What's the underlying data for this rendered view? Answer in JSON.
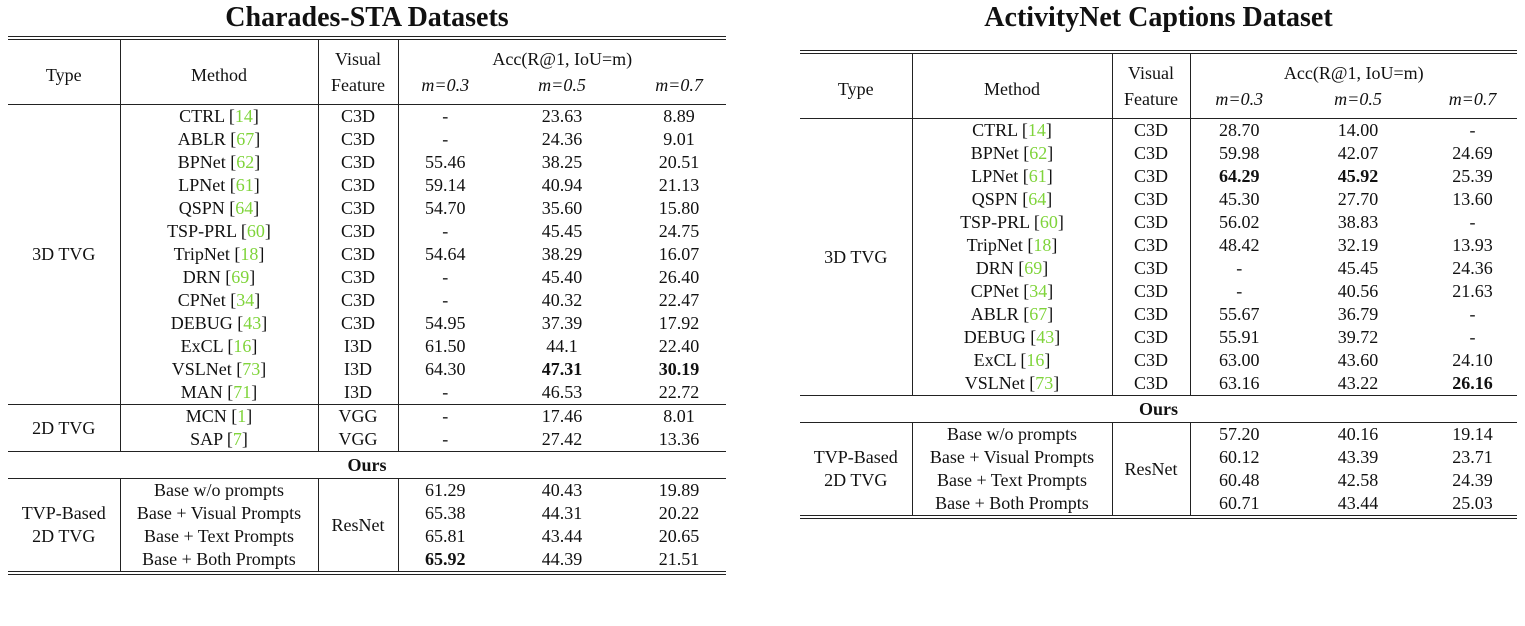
{
  "left": {
    "title": "Charades-STA Datasets",
    "headers": {
      "type": "Type",
      "method": "Method",
      "feature_l1": "Visual",
      "feature_l2": "Feature",
      "acc": "Acc(R@1, IoU=m)",
      "m1": "m=0.3",
      "m2": "m=0.5",
      "m3": "m=0.7"
    },
    "group_3d": "3D TVG",
    "rows_3d": [
      {
        "method": "CTRL",
        "ref": "14",
        "feat": "C3D",
        "v1": "-",
        "v2": "23.63",
        "v3": "8.89"
      },
      {
        "method": "ABLR",
        "ref": "67",
        "feat": "C3D",
        "v1": "-",
        "v2": "24.36",
        "v3": "9.01"
      },
      {
        "method": "BPNet",
        "ref": "62",
        "feat": "C3D",
        "v1": "55.46",
        "v2": "38.25",
        "v3": "20.51"
      },
      {
        "method": "LPNet",
        "ref": "61",
        "feat": "C3D",
        "v1": "59.14",
        "v2": "40.94",
        "v3": "21.13"
      },
      {
        "method": "QSPN",
        "ref": "64",
        "feat": "C3D",
        "v1": "54.70",
        "v2": "35.60",
        "v3": "15.80"
      },
      {
        "method": "TSP-PRL",
        "ref": "60",
        "feat": "C3D",
        "v1": "-",
        "v2": "45.45",
        "v3": "24.75"
      },
      {
        "method": "TripNet",
        "ref": "18",
        "feat": "C3D",
        "v1": "54.64",
        "v2": "38.29",
        "v3": "16.07"
      },
      {
        "method": "DRN",
        "ref": "69",
        "feat": "C3D",
        "v1": "-",
        "v2": "45.40",
        "v3": "26.40"
      },
      {
        "method": "CPNet",
        "ref": "34",
        "feat": "C3D",
        "v1": "-",
        "v2": "40.32",
        "v3": "22.47"
      },
      {
        "method": "DEBUG",
        "ref": "43",
        "feat": "C3D",
        "v1": "54.95",
        "v2": "37.39",
        "v3": "17.92"
      },
      {
        "method": "ExCL",
        "ref": "16",
        "feat": "I3D",
        "v1": "61.50",
        "v2": "44.1",
        "v3": "22.40"
      },
      {
        "method": "VSLNet",
        "ref": "73",
        "feat": "I3D",
        "v1": "64.30",
        "v2": "47.31",
        "v3": "30.19"
      },
      {
        "method": "MAN",
        "ref": "71",
        "feat": "I3D",
        "v1": "-",
        "v2": "46.53",
        "v3": "22.72"
      }
    ],
    "group_2d": "2D TVG",
    "rows_2d": [
      {
        "method": "MCN",
        "ref": "1",
        "feat": "VGG",
        "v1": "-",
        "v2": "17.46",
        "v3": "8.01"
      },
      {
        "method": "SAP",
        "ref": "7",
        "feat": "VGG",
        "v1": "-",
        "v2": "27.42",
        "v3": "13.36"
      }
    ],
    "ours_label": "Ours",
    "group_tvp_l1": "TVP-Based",
    "group_tvp_l2": "2D TVG",
    "tvp_feature": "ResNet",
    "rows_tvp": [
      {
        "method": "Base w/o prompts",
        "v1": "61.29",
        "v2": "40.43",
        "v3": "19.89"
      },
      {
        "method": "Base + Visual Prompts",
        "v1": "65.38",
        "v2": "44.31",
        "v3": "20.22"
      },
      {
        "method": "Base + Text Prompts",
        "v1": "65.81",
        "v2": "43.44",
        "v3": "20.65"
      },
      {
        "method": "Base + Both Prompts",
        "v1": "65.92",
        "v2": "44.39",
        "v3": "21.51"
      }
    ]
  },
  "right": {
    "title": "ActivityNet Captions Dataset",
    "headers": {
      "type": "Type",
      "method": "Method",
      "feature_l1": "Visual",
      "feature_l2": "Feature",
      "acc": "Acc(R@1, IoU=m)",
      "m1": "m=0.3",
      "m2": "m=0.5",
      "m3": "m=0.7"
    },
    "group_3d": "3D TVG",
    "rows_3d": [
      {
        "method": "CTRL",
        "ref": "14",
        "feat": "C3D",
        "v1": "28.70",
        "v2": "14.00",
        "v3": "-"
      },
      {
        "method": "BPNet",
        "ref": "62",
        "feat": "C3D",
        "v1": "59.98",
        "v2": "42.07",
        "v3": "24.69"
      },
      {
        "method": "LPNet",
        "ref": "61",
        "feat": "C3D",
        "v1": "64.29",
        "v2": "45.92",
        "v3": "25.39"
      },
      {
        "method": "QSPN",
        "ref": "64",
        "feat": "C3D",
        "v1": "45.30",
        "v2": "27.70",
        "v3": "13.60"
      },
      {
        "method": "TSP-PRL",
        "ref": "60",
        "feat": "C3D",
        "v1": "56.02",
        "v2": "38.83",
        "v3": "-"
      },
      {
        "method": "TripNet",
        "ref": "18",
        "feat": "C3D",
        "v1": "48.42",
        "v2": "32.19",
        "v3": "13.93"
      },
      {
        "method": "DRN",
        "ref": "69",
        "feat": "C3D",
        "v1": "-",
        "v2": "45.45",
        "v3": "24.36"
      },
      {
        "method": "CPNet",
        "ref": "34",
        "feat": "C3D",
        "v1": "-",
        "v2": "40.56",
        "v3": "21.63"
      },
      {
        "method": "ABLR",
        "ref": "67",
        "feat": "C3D",
        "v1": "55.67",
        "v2": "36.79",
        "v3": "-"
      },
      {
        "method": "DEBUG",
        "ref": "43",
        "feat": "C3D",
        "v1": "55.91",
        "v2": "39.72",
        "v3": "-"
      },
      {
        "method": "ExCL",
        "ref": "16",
        "feat": "C3D",
        "v1": "63.00",
        "v2": "43.60",
        "v3": "24.10"
      },
      {
        "method": "VSLNet",
        "ref": "73",
        "feat": "C3D",
        "v1": "63.16",
        "v2": "43.22",
        "v3": "26.16"
      }
    ],
    "ours_label": "Ours",
    "group_tvp_l1": "TVP-Based",
    "group_tvp_l2": "2D TVG",
    "tvp_feature": "ResNet",
    "rows_tvp": [
      {
        "method": "Base w/o prompts",
        "v1": "57.20",
        "v2": "40.16",
        "v3": "19.14"
      },
      {
        "method": "Base + Visual Prompts",
        "v1": "60.12",
        "v2": "43.39",
        "v3": "23.71"
      },
      {
        "method": "Base + Text Prompts",
        "v1": "60.48",
        "v2": "42.58",
        "v3": "24.39"
      },
      {
        "method": "Base + Both Prompts",
        "v1": "60.71",
        "v2": "43.44",
        "v3": "25.03"
      }
    ]
  }
}
